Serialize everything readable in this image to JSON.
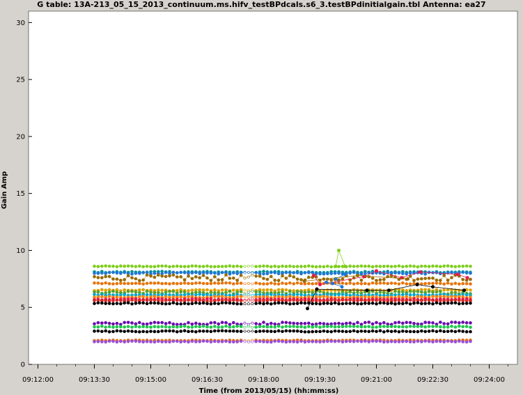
{
  "header": {
    "title": "G table: 13A-213_05_15_2013_continuum.ms.hifv_testBPdcals.s6_3.testBPdinitialgain.tbl   Antenna: ea27"
  },
  "chart_data": {
    "type": "scatter",
    "title": "G table: 13A-213_05_15_2013_continuum.ms.hifv_testBPdcals.s6_3.testBPdinitialgain.tbl   Antenna: ea27",
    "xlabel": "Time (from 2013/05/15) (hh:mm:ss)",
    "ylabel": "Gain Amp",
    "xlim": [
      "09:11:45",
      "09:24:45"
    ],
    "ylim": [
      0,
      31
    ],
    "x_ticks": [
      "09:12:00",
      "09:13:30",
      "09:15:00",
      "09:16:30",
      "09:18:00",
      "09:19:30",
      "09:21:00",
      "09:22:30",
      "09:24:00"
    ],
    "y_ticks": [
      0,
      5,
      10,
      15,
      20,
      25,
      30
    ],
    "x_range_data": [
      "09:13:30",
      "09:23:30"
    ],
    "gap": [
      "09:17:25",
      "09:17:45"
    ],
    "grid": false,
    "series": [
      {
        "color": "#7fce1c",
        "level": 8.6,
        "noise": 0.04
      },
      {
        "color": "#00929a",
        "level": 8.1,
        "noise": 0.06
      },
      {
        "color": "#1f77d4",
        "level": 8.0,
        "noise": 0.08
      },
      {
        "color": "#9a6a00",
        "level": 7.6,
        "noise": 0.25
      },
      {
        "color": "#e8740c",
        "level": 7.1,
        "noise": 0.05
      },
      {
        "color": "#e0a000",
        "level": 6.5,
        "noise": 0.06
      },
      {
        "color": "#5aa02c",
        "level": 6.3,
        "noise": 0.12
      },
      {
        "color": "#00a6c8",
        "level": 6.1,
        "noise": 0.05
      },
      {
        "color": "#ff7f0e",
        "level": 5.9,
        "noise": 0.06
      },
      {
        "color": "#e8174f",
        "level": 5.7,
        "noise": 0.06
      },
      {
        "color": "#d62728",
        "level": 5.6,
        "noise": 0.05
      },
      {
        "color": "#000000",
        "level": 5.35,
        "noise": 0.05
      },
      {
        "color": "#6a0dad",
        "level": 3.6,
        "noise": 0.1
      },
      {
        "color": "#1ec84a",
        "level": 3.3,
        "noise": 0.05
      },
      {
        "color": "#000000",
        "level": 2.9,
        "noise": 0.05
      },
      {
        "color": "#e8740c",
        "level": 2.1,
        "noise": 0.03
      },
      {
        "color": "#9a4fd6",
        "level": 2.0,
        "noise": 0.04
      }
    ],
    "outliers": [
      {
        "color": "#7fce1c",
        "points": [
          [
            "09:19:55",
            8.6
          ],
          [
            "09:20:00",
            10.0
          ],
          [
            "09:20:10",
            8.6
          ]
        ]
      },
      {
        "color": "#e8174f",
        "points": [
          [
            "09:19:20",
            7.8
          ],
          [
            "09:19:30",
            7.0
          ],
          [
            "09:20:40",
            7.7
          ],
          [
            "09:21:00",
            8.2
          ],
          [
            "09:21:40",
            7.6
          ],
          [
            "09:22:10",
            8.1
          ],
          [
            "09:23:10",
            7.9
          ],
          [
            "09:23:25",
            7.6
          ]
        ]
      },
      {
        "color": "#1f77d4",
        "points": [
          [
            "09:19:40",
            7.2
          ],
          [
            "09:19:50",
            7.1
          ],
          [
            "09:20:05",
            6.8
          ],
          [
            "09:19:55",
            7.5
          ],
          [
            "09:20:10",
            7.9
          ]
        ]
      },
      {
        "color": "#000000",
        "points": [
          [
            "09:19:10",
            4.9
          ],
          [
            "09:19:25",
            6.6
          ],
          [
            "09:20:45",
            6.5
          ],
          [
            "09:21:20",
            6.5
          ],
          [
            "09:22:05",
            7.0
          ],
          [
            "09:22:30",
            6.8
          ],
          [
            "09:23:20",
            6.5
          ]
        ]
      },
      {
        "color": "#9a6a00",
        "points": [
          [
            "09:19:05",
            7.3
          ],
          [
            "09:20:30",
            7.8
          ],
          [
            "09:21:50",
            7.5
          ]
        ]
      }
    ]
  }
}
